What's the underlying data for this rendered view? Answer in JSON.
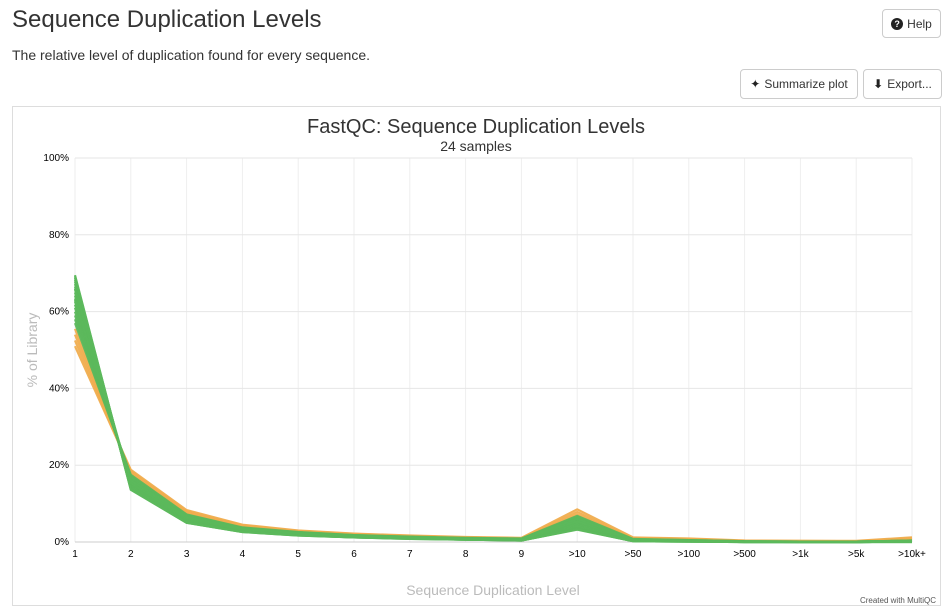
{
  "header": {
    "title": "Sequence Duplication Levels",
    "description": "The relative level of duplication found for every sequence.",
    "help_label": "Help",
    "help_icon": "question-circle-icon"
  },
  "toolbar": {
    "summarize_label": "Summarize plot",
    "summarize_icon": "sparkle-icon",
    "export_label": "Export...",
    "export_icon": "download-icon"
  },
  "credit": "Created with MultiQC",
  "chart_data": {
    "type": "line",
    "title": "FastQC: Sequence Duplication Levels",
    "subtitle": "24 samples",
    "xlabel": "Sequence Duplication Level",
    "ylabel": "% of Library",
    "categories": [
      "1",
      "2",
      "3",
      "4",
      "5",
      "6",
      "7",
      "8",
      "9",
      ">10",
      ">50",
      ">100",
      ">500",
      ">1k",
      ">5k",
      ">10k+"
    ],
    "yticks": [
      "0%",
      "20%",
      "40%",
      "60%",
      "80%",
      "100%"
    ],
    "ylim": [
      0,
      100
    ],
    "grid": true,
    "legend": "none",
    "colors": {
      "pass": "#5cb85c",
      "warn": "#f0ad4e"
    },
    "series": [
      {
        "status": "warn",
        "values": [
          51.0,
          18.8,
          8.3,
          4.5,
          3.0,
          2.2,
          1.7,
          1.3,
          1.1,
          8.5,
          1.2,
          0.9,
          0.4,
          0.3,
          0.3,
          1.2
        ]
      },
      {
        "status": "warn",
        "values": [
          52.5,
          18.4,
          8.0,
          4.3,
          2.9,
          2.1,
          1.6,
          1.2,
          1.0,
          7.8,
          1.0,
          0.8,
          0.3,
          0.3,
          0.2,
          1.0
        ]
      },
      {
        "status": "warn",
        "values": [
          54.0,
          18.0,
          7.7,
          4.1,
          2.8,
          2.0,
          1.5,
          1.2,
          1.0,
          7.2,
          0.9,
          0.7,
          0.3,
          0.2,
          0.2,
          0.8
        ]
      },
      {
        "status": "warn",
        "values": [
          55.5,
          17.6,
          7.4,
          3.9,
          2.7,
          1.9,
          1.4,
          1.1,
          0.9,
          6.6,
          0.8,
          0.6,
          0.2,
          0.2,
          0.1,
          0.7
        ]
      },
      {
        "status": "pass",
        "values": [
          57.0,
          17.5,
          7.2,
          3.8,
          2.6,
          1.8,
          1.4,
          1.1,
          0.9,
          6.8,
          0.8,
          0.5,
          0.2,
          0.1,
          0.1,
          0.4
        ]
      },
      {
        "status": "pass",
        "values": [
          58.0,
          17.2,
          7.0,
          3.7,
          2.5,
          1.8,
          1.3,
          1.0,
          0.8,
          6.5,
          0.7,
          0.5,
          0.2,
          0.1,
          0.1,
          0.4
        ]
      },
      {
        "status": "pass",
        "values": [
          59.0,
          16.9,
          6.8,
          3.6,
          2.4,
          1.7,
          1.3,
          1.0,
          0.8,
          6.2,
          0.6,
          0.4,
          0.2,
          0.1,
          0.1,
          0.3
        ]
      },
      {
        "status": "pass",
        "values": [
          60.0,
          16.6,
          6.6,
          3.5,
          2.4,
          1.7,
          1.2,
          0.9,
          0.7,
          5.9,
          0.6,
          0.4,
          0.1,
          0.1,
          0.1,
          0.3
        ]
      },
      {
        "status": "pass",
        "values": [
          61.0,
          16.3,
          6.4,
          3.4,
          2.3,
          1.6,
          1.2,
          0.9,
          0.7,
          5.6,
          0.5,
          0.4,
          0.1,
          0.1,
          0.1,
          0.3
        ]
      },
      {
        "status": "pass",
        "values": [
          61.8,
          16.0,
          6.3,
          3.3,
          2.2,
          1.6,
          1.1,
          0.9,
          0.7,
          5.3,
          0.5,
          0.3,
          0.1,
          0.1,
          0.1,
          0.2
        ]
      },
      {
        "status": "pass",
        "values": [
          62.6,
          15.8,
          6.1,
          3.2,
          2.2,
          1.5,
          1.1,
          0.8,
          0.6,
          5.0,
          0.5,
          0.3,
          0.1,
          0.1,
          0.0,
          0.2
        ]
      },
      {
        "status": "pass",
        "values": [
          63.4,
          15.5,
          6.0,
          3.1,
          2.1,
          1.5,
          1.1,
          0.8,
          0.6,
          4.8,
          0.4,
          0.3,
          0.1,
          0.1,
          0.0,
          0.2
        ]
      },
      {
        "status": "pass",
        "values": [
          64.2,
          15.2,
          5.9,
          3.1,
          2.1,
          1.4,
          1.0,
          0.8,
          0.6,
          4.6,
          0.4,
          0.3,
          0.1,
          0.1,
          0.0,
          0.2
        ]
      },
      {
        "status": "pass",
        "values": [
          65.0,
          15.0,
          5.7,
          3.0,
          2.0,
          1.4,
          1.0,
          0.7,
          0.6,
          4.4,
          0.4,
          0.2,
          0.1,
          0.0,
          0.0,
          0.1
        ]
      },
      {
        "status": "pass",
        "values": [
          65.8,
          14.8,
          5.6,
          2.9,
          2.0,
          1.4,
          1.0,
          0.7,
          0.5,
          4.2,
          0.3,
          0.2,
          0.1,
          0.0,
          0.0,
          0.1
        ]
      },
      {
        "status": "pass",
        "values": [
          66.5,
          14.6,
          5.5,
          2.9,
          1.9,
          1.3,
          1.0,
          0.7,
          0.5,
          4.0,
          0.3,
          0.2,
          0.1,
          0.0,
          0.0,
          0.1
        ]
      },
      {
        "status": "pass",
        "values": [
          67.2,
          14.4,
          5.4,
          2.8,
          1.9,
          1.3,
          0.9,
          0.7,
          0.5,
          3.8,
          0.3,
          0.2,
          0.0,
          0.0,
          0.0,
          0.1
        ]
      },
      {
        "status": "pass",
        "values": [
          67.8,
          14.2,
          5.3,
          2.8,
          1.8,
          1.3,
          0.9,
          0.6,
          0.5,
          3.6,
          0.3,
          0.2,
          0.0,
          0.0,
          0.0,
          0.1
        ]
      },
      {
        "status": "pass",
        "values": [
          68.3,
          14.0,
          5.2,
          2.7,
          1.8,
          1.2,
          0.9,
          0.6,
          0.5,
          3.5,
          0.3,
          0.2,
          0.0,
          0.0,
          0.0,
          0.1
        ]
      },
      {
        "status": "pass",
        "values": [
          68.8,
          13.9,
          5.1,
          2.7,
          1.8,
          1.2,
          0.9,
          0.6,
          0.4,
          3.4,
          0.2,
          0.1,
          0.0,
          0.0,
          0.0,
          0.1
        ]
      },
      {
        "status": "pass",
        "values": [
          69.2,
          13.7,
          5.0,
          2.6,
          1.7,
          1.2,
          0.8,
          0.6,
          0.4,
          3.3,
          0.2,
          0.1,
          0.0,
          0.0,
          0.0,
          0.0
        ]
      },
      {
        "status": "pass",
        "values": [
          69.5,
          13.6,
          5.0,
          2.6,
          1.7,
          1.2,
          0.8,
          0.6,
          0.4,
          3.2,
          0.2,
          0.1,
          0.0,
          0.0,
          0.0,
          0.0
        ]
      },
      {
        "status": "pass",
        "values": [
          66.0,
          15.4,
          6.2,
          3.2,
          2.1,
          1.5,
          1.1,
          0.8,
          0.6,
          5.4,
          0.5,
          0.3,
          0.1,
          0.1,
          0.0,
          0.2
        ]
      },
      {
        "status": "pass",
        "values": [
          63.0,
          16.1,
          6.5,
          3.4,
          2.3,
          1.6,
          1.2,
          0.9,
          0.7,
          6.0,
          0.6,
          0.4,
          0.1,
          0.1,
          0.1,
          0.3
        ]
      }
    ]
  }
}
